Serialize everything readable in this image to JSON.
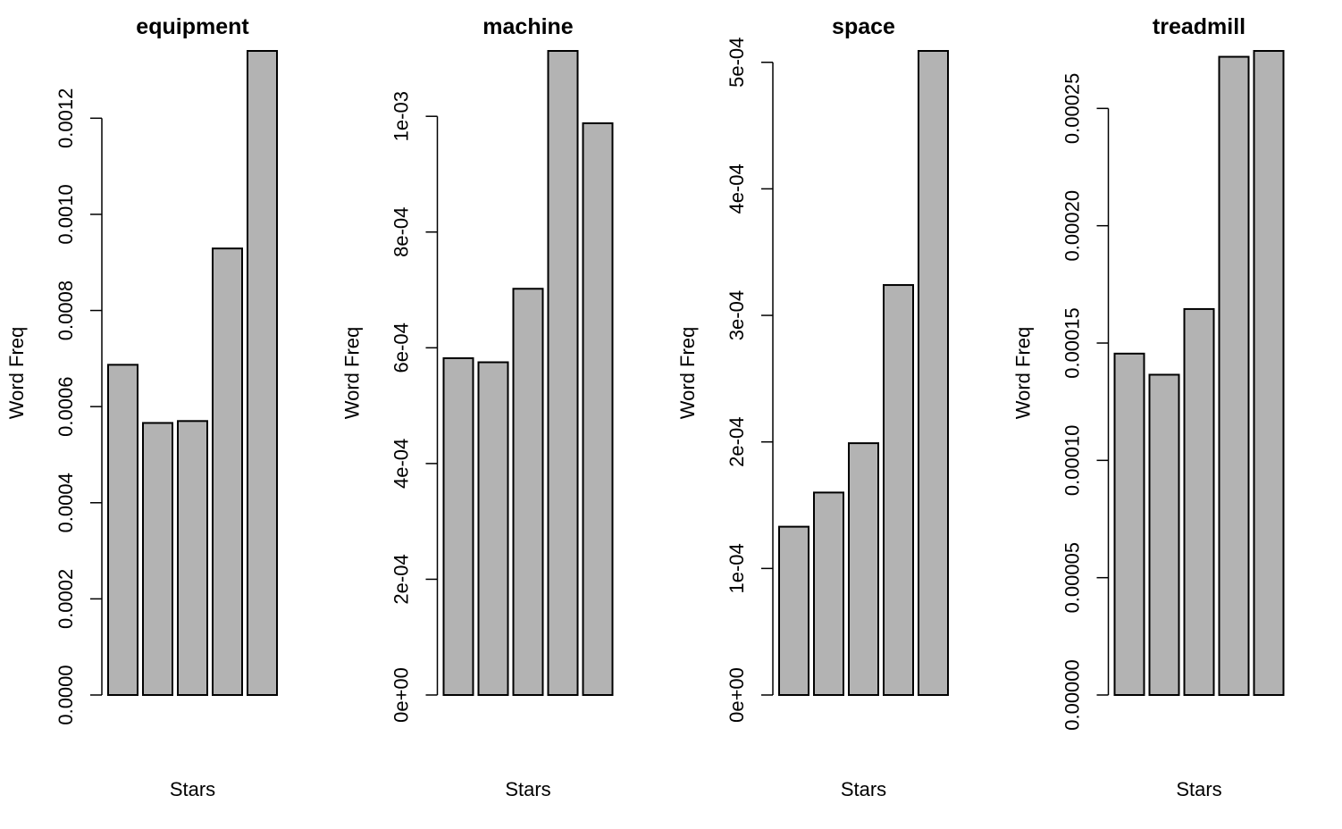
{
  "chart_data": [
    {
      "type": "bar",
      "title": "equipment",
      "xlabel": "Stars",
      "ylabel": "Word Freq",
      "categories": [
        "",
        "",
        "",
        "",
        ""
      ],
      "values": [
        0.000687,
        0.000566,
        0.00057,
        0.000929,
        0.00134
      ],
      "ylim": [
        0,
        0.00134
      ],
      "yticks": [
        0,
        0.0002,
        0.0004,
        0.0006,
        0.0008,
        0.001,
        0.0012
      ],
      "ytick_labels": [
        "0.0000",
        "0.0002",
        "0.0004",
        "0.0006",
        "0.0008",
        "0.0010",
        "0.0012"
      ],
      "bar_color": "#b3b3b3",
      "grid": false
    },
    {
      "type": "bar",
      "title": "machine",
      "xlabel": "Stars",
      "ylabel": "Word Freq",
      "categories": [
        "",
        "",
        "",
        "",
        ""
      ],
      "values": [
        0.000582,
        0.000575,
        0.000702,
        0.001113,
        0.000988
      ],
      "ylim": [
        0,
        0.001113
      ],
      "yticks": [
        0,
        0.0002,
        0.0004,
        0.0006,
        0.0008,
        0.001
      ],
      "ytick_labels": [
        "0e+00",
        "2e-04",
        "4e-04",
        "6e-04",
        "8e-04",
        "1e-03"
      ],
      "bar_color": "#b3b3b3",
      "grid": false
    },
    {
      "type": "bar",
      "title": "space",
      "xlabel": "Stars",
      "ylabel": "Word Freq",
      "categories": [
        "",
        "",
        "",
        "",
        ""
      ],
      "values": [
        0.000133,
        0.00016,
        0.000199,
        0.000324,
        0.000509
      ],
      "ylim": [
        0,
        0.000509
      ],
      "yticks": [
        0,
        0.0001,
        0.0002,
        0.0003,
        0.0004,
        0.0005
      ],
      "ytick_labels": [
        "0e+00",
        "1e-04",
        "2e-04",
        "3e-04",
        "4e-04",
        "5e-04"
      ],
      "bar_color": "#b3b3b3",
      "grid": false
    },
    {
      "type": "bar",
      "title": "treadmill",
      "xlabel": "Stars",
      "ylabel": "Word Freq",
      "categories": [
        "",
        "",
        "",
        "",
        ""
      ],
      "values": [
        0.0001455,
        0.0001365,
        0.0001645,
        0.000272,
        0.0002745
      ],
      "ylim": [
        0,
        0.0002745
      ],
      "yticks": [
        0,
        5e-05,
        0.0001,
        0.00015,
        0.0002,
        0.00025
      ],
      "ytick_labels": [
        "0.00000",
        "0.00005",
        "0.00010",
        "0.00015",
        "0.00020",
        "0.00025"
      ],
      "bar_color": "#b3b3b3",
      "grid": false
    }
  ]
}
